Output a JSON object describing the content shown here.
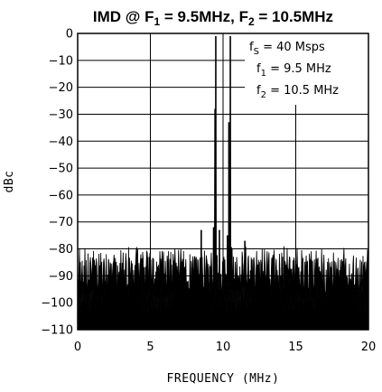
{
  "chart_data": {
    "type": "line",
    "title": {
      "prefix": "IMD @ F",
      "sub1": "1",
      "mid": " = 9.5MHz, F",
      "sub2": "2",
      "suffix": " = 10.5MHz"
    },
    "xlabel": "FREQUENCY (MHz)",
    "ylabel": "dBc",
    "xlim": [
      0,
      20
    ],
    "ylim": [
      -110,
      0
    ],
    "x_ticks": [
      0,
      5,
      10,
      15,
      20
    ],
    "y_ticks": [
      0,
      -10,
      -20,
      -30,
      -40,
      -50,
      -60,
      -70,
      -80,
      -90,
      -100,
      -110
    ],
    "x_tick_labels": [
      "0",
      "5",
      "10",
      "15",
      "20"
    ],
    "y_tick_labels": [
      "0",
      "−10",
      "−20",
      "−30",
      "−40",
      "−50",
      "−60",
      "−70",
      "−80",
      "−90",
      "−100",
      "−110"
    ],
    "grid": true,
    "noise_floor_range_dbc": [
      -110,
      -80
    ],
    "peaks": [
      {
        "x": 9.5,
        "y": -1
      },
      {
        "x": 10.5,
        "y": -1
      },
      {
        "x": 9.45,
        "y": -28
      },
      {
        "x": 10.4,
        "y": -33
      },
      {
        "x": 8.5,
        "y": -73
      },
      {
        "x": 9.35,
        "y": -72
      },
      {
        "x": 9.75,
        "y": -73
      },
      {
        "x": 10.3,
        "y": -75
      },
      {
        "x": 11.5,
        "y": -77
      }
    ],
    "annotation": {
      "fs": {
        "label": "f",
        "sub": "S",
        "value": " = 40 Msps"
      },
      "f1": {
        "label": "f",
        "sub": "1",
        "value": " = 9.5 MHz"
      },
      "f2": {
        "label": "f",
        "sub": "2",
        "value": " = 10.5 MHz"
      }
    },
    "colors": {
      "trace": "#000000",
      "grid": "#000000",
      "background": "#ffffff"
    }
  }
}
